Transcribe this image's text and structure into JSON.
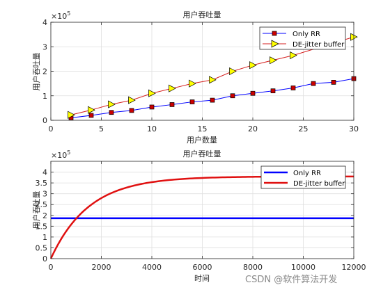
{
  "chart_data": [
    {
      "type": "line",
      "title": "用户吞吐量",
      "xlabel": "用户数量",
      "ylabel": "用户吞吐量",
      "y_exponent": "×10",
      "y_exponent_power": "5",
      "xlim": [
        0,
        30
      ],
      "ylim": [
        0,
        4
      ],
      "xticks": [
        0,
        5,
        10,
        15,
        20,
        25,
        30
      ],
      "yticks": [
        0,
        1,
        2,
        3,
        4
      ],
      "grid": true,
      "legend_position": "top-right",
      "series": [
        {
          "name": "Only RR",
          "color": "#0000ff",
          "marker": "square",
          "marker_color": "#cc0000",
          "x": [
            2,
            4,
            6,
            8,
            10,
            12,
            14,
            16,
            18,
            20,
            22,
            24,
            26,
            28,
            30
          ],
          "y": [
            0.1,
            0.2,
            0.32,
            0.4,
            0.54,
            0.64,
            0.75,
            0.82,
            1.0,
            1.1,
            1.2,
            1.32,
            1.5,
            1.55,
            1.7
          ]
        },
        {
          "name": "DE-jitter buffer",
          "color": "#d62020",
          "marker": "triangle-right",
          "marker_color": "#ffff00",
          "x": [
            2,
            4,
            6,
            8,
            10,
            12,
            14,
            16,
            18,
            20,
            22,
            24,
            30
          ],
          "y": [
            0.22,
            0.42,
            0.65,
            0.82,
            1.1,
            1.3,
            1.5,
            1.65,
            2.0,
            2.25,
            2.45,
            2.65,
            3.4
          ]
        }
      ]
    },
    {
      "type": "line",
      "title": "用户吞吐量",
      "xlabel": "时间",
      "ylabel": "用户吞吐量",
      "y_exponent": "×10",
      "y_exponent_power": "5",
      "xlim": [
        0,
        12000
      ],
      "ylim": [
        0,
        4.5
      ],
      "xticks": [
        0,
        2000,
        4000,
        6000,
        8000,
        10000,
        12000
      ],
      "yticks": [
        0,
        0.5,
        1,
        1.5,
        2,
        2.5,
        3,
        3.5,
        4
      ],
      "grid": true,
      "legend_position": "top-right",
      "series": [
        {
          "name": "Only RR",
          "color": "#0000ff",
          "type": "constant",
          "y": 1.87
        },
        {
          "name": "DE-jitter buffer",
          "color": "#e01010",
          "type": "saturating",
          "y_max": 3.8,
          "time_constant": 1500,
          "y_at_12000": 3.8
        }
      ]
    }
  ],
  "watermark": "CSDN @软件算法开发"
}
